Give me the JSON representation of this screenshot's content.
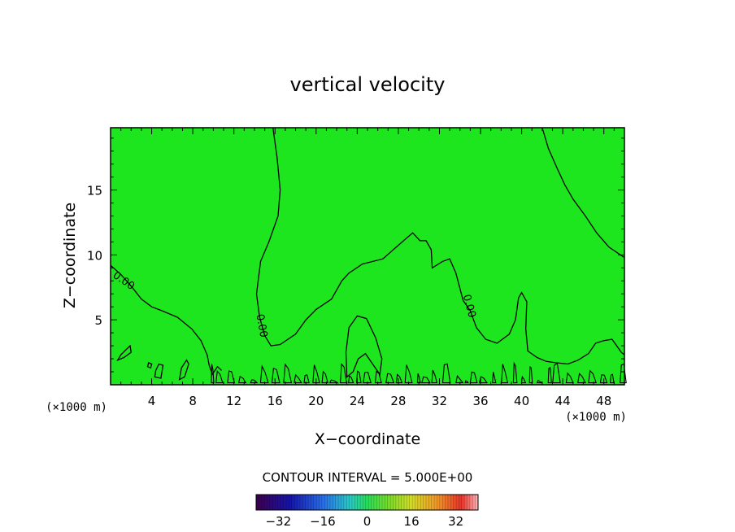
{
  "chart_data": {
    "type": "contour",
    "title": "vertical velocity",
    "xlabel": "X−coordinate",
    "ylabel": "Z−coordinate",
    "x_unit_left": "(×1000 m)",
    "x_unit_right": "(×1000 m)",
    "xlim": [
      0,
      50
    ],
    "ylim": [
      0,
      19.8
    ],
    "x_ticks": [
      4,
      8,
      12,
      16,
      20,
      24,
      28,
      32,
      36,
      40,
      44,
      48
    ],
    "y_ticks": [
      5,
      10,
      15
    ],
    "contour_interval_text": "CONTOUR INTERVAL = 5.000E+00",
    "contour_label": "0.00",
    "colorbar": {
      "min": -40,
      "max": 40,
      "tick_values": [
        -32,
        -16,
        0,
        16,
        32
      ],
      "tick_labels": [
        "−32",
        "−16",
        "0",
        "16",
        "32"
      ]
    },
    "fill_color": "#1ee61e",
    "contours": [
      {
        "level": 0,
        "points": [
          [
            15.8,
            19.8
          ],
          [
            16.2,
            17.5
          ],
          [
            16.5,
            15.0
          ],
          [
            16.3,
            13.0
          ],
          [
            15.4,
            11.0
          ],
          [
            14.6,
            9.5
          ],
          [
            14.2,
            7.0
          ],
          [
            14.5,
            5.2
          ],
          [
            15.0,
            3.8
          ],
          [
            15.6,
            3.0
          ],
          [
            16.5,
            3.1
          ],
          [
            18.0,
            3.9
          ],
          [
            19.0,
            5.0
          ],
          [
            20.0,
            5.8
          ],
          [
            21.5,
            6.6
          ],
          [
            22.5,
            8.0
          ],
          [
            23.2,
            8.6
          ],
          [
            24.5,
            9.3
          ],
          [
            26.5,
            9.7
          ],
          [
            27.8,
            10.6
          ],
          [
            28.8,
            11.3
          ],
          [
            29.4,
            11.7
          ],
          [
            30.1,
            11.1
          ],
          [
            30.7,
            11.1
          ],
          [
            31.2,
            10.4
          ],
          [
            31.3,
            9.0
          ],
          [
            32.3,
            9.5
          ],
          [
            33.0,
            9.7
          ],
          [
            33.6,
            8.6
          ],
          [
            34.3,
            6.5
          ],
          [
            35.0,
            5.7
          ],
          [
            35.6,
            4.4
          ],
          [
            36.5,
            3.5
          ],
          [
            37.6,
            3.2
          ],
          [
            38.8,
            3.9
          ],
          [
            39.4,
            5.0
          ],
          [
            39.7,
            6.7
          ],
          [
            40.0,
            7.1
          ],
          [
            40.5,
            6.4
          ],
          [
            40.4,
            4.3
          ],
          [
            40.6,
            2.6
          ],
          [
            41.5,
            2.1
          ],
          [
            42.4,
            1.8
          ],
          [
            43.3,
            1.7
          ],
          [
            44.5,
            1.6
          ],
          [
            45.5,
            1.9
          ],
          [
            46.5,
            2.4
          ],
          [
            47.2,
            3.2
          ],
          [
            48.0,
            3.4
          ],
          [
            48.8,
            3.5
          ],
          [
            49.7,
            2.5
          ],
          [
            50.0,
            2.3
          ]
        ]
      },
      {
        "level": 0,
        "points": [
          [
            0.0,
            9.2
          ],
          [
            1.0,
            8.5
          ],
          [
            2.0,
            7.6
          ],
          [
            3.0,
            6.6
          ],
          [
            4.0,
            6.0
          ],
          [
            5.0,
            5.7
          ],
          [
            6.5,
            5.2
          ],
          [
            7.9,
            4.3
          ],
          [
            8.8,
            3.4
          ],
          [
            9.4,
            2.3
          ],
          [
            9.6,
            1.5
          ],
          [
            9.9,
            0.8
          ],
          [
            10.4,
            1.4
          ],
          [
            10.8,
            1.1
          ]
        ]
      },
      {
        "level": 0,
        "points": [
          [
            42.0,
            19.8
          ],
          [
            42.6,
            18.2
          ],
          [
            43.5,
            16.6
          ],
          [
            44.2,
            15.4
          ],
          [
            45.0,
            14.3
          ],
          [
            46.2,
            13.0
          ],
          [
            47.3,
            11.7
          ],
          [
            48.5,
            10.6
          ],
          [
            50.0,
            9.8
          ]
        ]
      },
      {
        "level": 0,
        "closed": true,
        "points": [
          [
            23.0,
            0.6
          ],
          [
            22.9,
            2.5
          ],
          [
            23.2,
            4.4
          ],
          [
            24.0,
            5.3
          ],
          [
            24.9,
            5.1
          ],
          [
            25.8,
            3.6
          ],
          [
            26.4,
            2.0
          ],
          [
            26.2,
            0.8
          ],
          [
            25.5,
            1.6
          ],
          [
            24.8,
            2.4
          ],
          [
            24.1,
            2.0
          ],
          [
            23.6,
            1.0
          ]
        ]
      },
      {
        "level": 0,
        "closed": true,
        "points": [
          [
            0.7,
            1.9
          ],
          [
            1.3,
            2.1
          ],
          [
            2.0,
            2.5
          ],
          [
            1.9,
            3.0
          ],
          [
            1.5,
            2.7
          ],
          [
            1.0,
            2.3
          ]
        ]
      },
      {
        "level": 0,
        "closed": true,
        "points": [
          [
            3.6,
            1.4
          ],
          [
            3.9,
            1.3
          ],
          [
            4.0,
            1.6
          ],
          [
            3.7,
            1.7
          ]
        ]
      },
      {
        "level": 0,
        "closed": true,
        "points": [
          [
            4.3,
            0.6
          ],
          [
            4.9,
            0.5
          ],
          [
            5.1,
            1.5
          ],
          [
            4.7,
            1.6
          ],
          [
            4.4,
            1.1
          ]
        ]
      },
      {
        "level": 0,
        "closed": true,
        "points": [
          [
            6.7,
            0.4
          ],
          [
            7.2,
            0.6
          ],
          [
            7.6,
            1.6
          ],
          [
            7.4,
            1.9
          ],
          [
            6.9,
            1.3
          ]
        ]
      }
    ]
  }
}
